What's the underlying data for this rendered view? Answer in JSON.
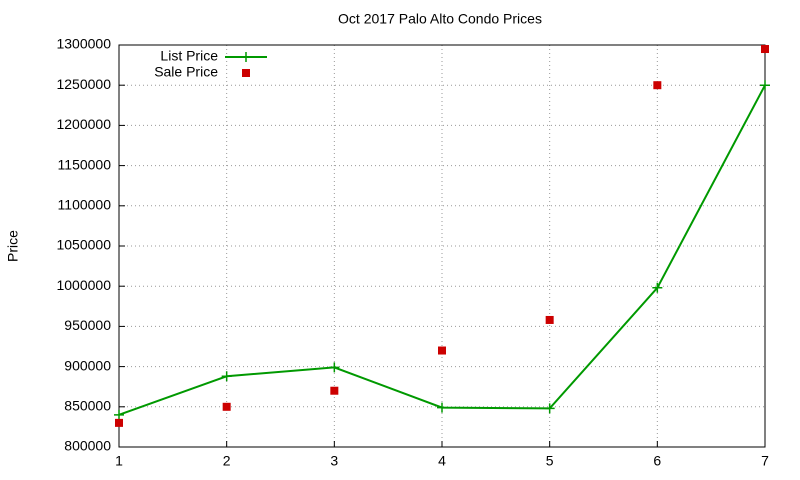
{
  "chart_data": {
    "type": "line",
    "title": "Oct 2017 Palo Alto Condo Prices",
    "y_label": "Price",
    "x": [
      1,
      2,
      3,
      4,
      5,
      6,
      7
    ],
    "series": [
      {
        "name": "List Price",
        "color": "#009900",
        "style": "linespoints",
        "values": [
          840000,
          888000,
          899000,
          849000,
          848000,
          998000,
          1250000
        ]
      },
      {
        "name": "Sale Price",
        "color": "#cc0000",
        "style": "points",
        "values": [
          830000,
          850000,
          870000,
          920000,
          958000,
          1250000,
          1295000
        ]
      }
    ],
    "xlim": [
      1,
      7
    ],
    "xticks": [
      1,
      2,
      3,
      4,
      5,
      6,
      7
    ],
    "ylim": [
      800000,
      1300000
    ],
    "yticks": [
      800000,
      850000,
      900000,
      950000,
      1000000,
      1050000,
      1100000,
      1150000,
      1200000,
      1250000,
      1300000
    ],
    "grid": true,
    "legend": "top-left"
  }
}
